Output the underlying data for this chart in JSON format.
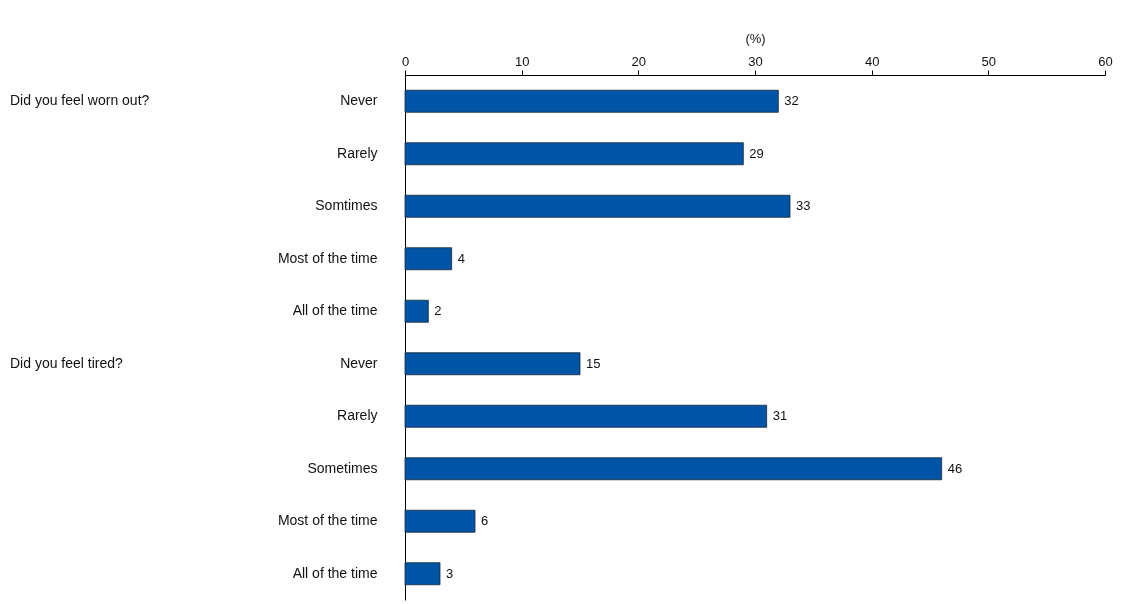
{
  "chart_data": {
    "type": "bar",
    "orientation": "horizontal",
    "xlabel": "(%)",
    "categories": [
      "Never",
      "Rarely",
      "Somtimes",
      "Most of the time",
      "All of the time",
      "Never",
      "Rarely",
      "Sometimes",
      "Most of the time",
      "All of the time"
    ],
    "values": [
      32,
      29,
      33,
      4,
      2,
      15,
      31,
      46,
      6,
      3
    ],
    "color": "#0054a6",
    "xlim": [
      0,
      60
    ],
    "xticks": [
      0,
      10,
      20,
      30,
      40,
      50,
      60
    ],
    "grid": false,
    "data_labels": true,
    "annotations": [
      "Did you feel worn out?",
      "Did you feel tired?"
    ]
  }
}
